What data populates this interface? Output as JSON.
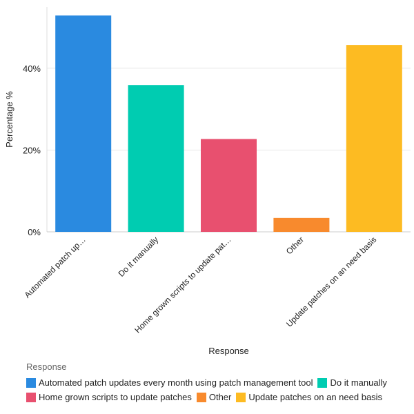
{
  "chart_data": {
    "type": "bar",
    "title": "",
    "xlabel": "Response",
    "ylabel": "Percentage %",
    "ylim": [
      0,
      55
    ],
    "yticks": [
      0,
      20,
      40
    ],
    "ytick_labels": [
      "0%",
      "20%",
      "40%"
    ],
    "grid": true,
    "categories": [
      "Automated patch updates every month using patch management tool",
      "Do it manually",
      "Home grown scripts to update patches",
      "Other",
      "Update patches on an need basis"
    ],
    "category_tick_labels": [
      "Automated patch up…",
      "Do it manually",
      "Home grown scripts to update pat…",
      "Other",
      "Update patches on an need basis"
    ],
    "values": [
      52.9,
      35.9,
      22.7,
      3.4,
      45.7
    ],
    "colors": [
      "#2a8ae0",
      "#00ccb1",
      "#e8506f",
      "#f88a2d",
      "#fdbb22"
    ],
    "legend": {
      "title": "Response",
      "placement": "bottom",
      "rows": [
        [
          0,
          1
        ],
        [
          2,
          3,
          4
        ]
      ]
    }
  }
}
